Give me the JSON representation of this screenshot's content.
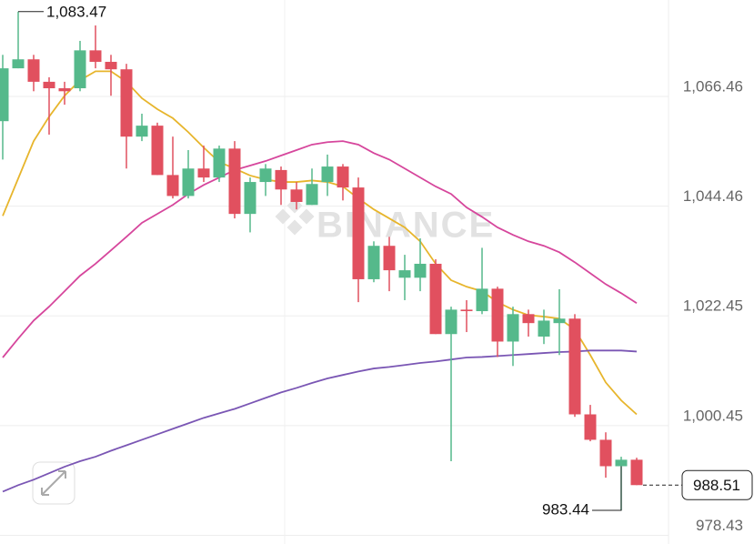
{
  "chart_data": {
    "type": "candlestick",
    "watermark": "BINANCE",
    "categories": [
      null,
      null,
      null,
      null,
      null,
      null,
      null,
      null,
      null,
      null,
      null,
      null,
      null,
      null,
      null,
      null,
      null,
      null,
      null,
      null,
      null,
      null,
      null,
      null,
      null,
      null,
      null,
      null,
      null,
      null,
      null,
      null,
      null,
      null,
      null,
      null,
      null,
      null,
      null,
      null,
      null,
      null
    ],
    "open": [
      1061.5,
      1072.1,
      1073.9,
      1069.4,
      1068.1,
      1068.1,
      1075.7,
      1073.4,
      1071.9,
      1058.4,
      1060.6,
      1050.7,
      1046.5,
      1052.0,
      1050.2,
      1056.0,
      1042.9,
      1049.3,
      1051.7,
      1047.8,
      1044.7,
      1049.3,
      1052.4,
      1048.2,
      1029.8,
      1036.5,
      1030.1,
      1030.1,
      1032.9,
      1018.8,
      1023.7,
      1023.4,
      1027.9,
      1017.3,
      1022.8,
      1018.3,
      1021.0,
      1021.9,
      1002.7,
      997.6,
      992.3,
      993.6
    ],
    "high": [
      1074.8,
      1083.47,
      1074.8,
      1070.3,
      1069.4,
      1077.6,
      1080.7,
      1074.8,
      1073.0,
      1063.0,
      1061.2,
      1058.4,
      1055.7,
      1056.6,
      1056.6,
      1057.5,
      1050.2,
      1052.9,
      1052.4,
      1049.3,
      1052.0,
      1054.8,
      1052.9,
      1050.2,
      1037.4,
      1038.3,
      1034.7,
      1038.0,
      1033.8,
      1024.3,
      1025.6,
      1036.1,
      1028.3,
      1024.3,
      1023.7,
      1023.7,
      1027.8,
      1022.8,
      1004.6,
      999.1,
      994.2,
      994.0
    ],
    "low": [
      1053.8,
      1072.1,
      1067.5,
      1058.8,
      1064.8,
      1067.5,
      1072.1,
      1066.6,
      1052.0,
      1057.5,
      1050.7,
      1046.0,
      1046.0,
      1049.3,
      1049.3,
      1042.0,
      1039.2,
      1046.5,
      1044.7,
      1043.8,
      1044.7,
      1046.5,
      1045.6,
      1025.2,
      1029.2,
      1027.4,
      1025.6,
      1027.4,
      1018.8,
      993.3,
      1019.2,
      1022.8,
      1014.2,
      1012.4,
      1018.3,
      1016.8,
      1014.6,
      1002.2,
      997.3,
      990.0,
      983.44,
      988.51
    ],
    "close": [
      1072.1,
      1073.9,
      1069.4,
      1068.1,
      1067.5,
      1075.7,
      1073.4,
      1071.9,
      1058.4,
      1060.6,
      1050.7,
      1046.5,
      1052.0,
      1050.2,
      1056.0,
      1042.9,
      1049.3,
      1052.0,
      1047.8,
      1045.3,
      1048.9,
      1052.4,
      1048.2,
      1029.8,
      1036.5,
      1031.6,
      1031.6,
      1032.9,
      1018.8,
      1023.7,
      1023.4,
      1027.9,
      1017.3,
      1022.8,
      1021.0,
      1021.5,
      1021.9,
      1002.7,
      997.6,
      992.3,
      993.6,
      988.51
    ],
    "up_color": "#55b98b",
    "down_color": "#e1505f",
    "series": [
      {
        "color": "#e7b52c",
        "values": [
          1042.5,
          1050.0,
          1057.5,
          1062.4,
          1066.6,
          1069.7,
          1071.5,
          1071.5,
          1069.4,
          1066.1,
          1063.9,
          1062.1,
          1059.3,
          1056.2,
          1053.3,
          1052.0,
          1050.6,
          1049.8,
          1049.3,
          1049.3,
          1049.6,
          1049.3,
          1048.4,
          1046.0,
          1043.8,
          1042.0,
          1040.2,
          1037.4,
          1032.9,
          1029.6,
          1028.3,
          1027.4,
          1025.2,
          1023.7,
          1022.6,
          1022.3,
          1021.9,
          1019.7,
          1014.6,
          1009.1,
          1005.5,
          1002.7
        ]
      },
      {
        "color": "#d6469c",
        "values": [
          1014.1,
          1017.9,
          1021.5,
          1024.3,
          1027.4,
          1030.5,
          1032.9,
          1035.6,
          1038.3,
          1041.1,
          1042.9,
          1044.7,
          1046.9,
          1048.7,
          1050.2,
          1051.7,
          1052.6,
          1053.5,
          1054.6,
          1055.7,
          1056.8,
          1057.3,
          1057.5,
          1056.8,
          1055.1,
          1053.8,
          1052.0,
          1050.2,
          1048.4,
          1046.9,
          1044.2,
          1042.3,
          1040.2,
          1038.7,
          1037.4,
          1036.5,
          1035.2,
          1033.2,
          1031.0,
          1028.8,
          1027.0,
          1025.0
        ]
      },
      {
        "color": "#7a56b4",
        "values": [
          987.2,
          988.5,
          989.6,
          990.9,
          992.2,
          993.3,
          994.2,
          995.4,
          996.5,
          997.6,
          998.7,
          999.8,
          1000.9,
          1002.0,
          1002.9,
          1003.8,
          1004.9,
          1006.0,
          1007.1,
          1008.0,
          1009.0,
          1009.9,
          1010.6,
          1011.3,
          1011.9,
          1012.2,
          1012.6,
          1013.0,
          1013.3,
          1013.7,
          1014.1,
          1014.2,
          1014.4,
          1014.6,
          1014.8,
          1015.0,
          1015.2,
          1015.3,
          1015.5,
          1015.5,
          1015.5,
          1015.3
        ]
      }
    ],
    "high_label": "1,083.47",
    "low_label": "983.44",
    "last_label": "988.51",
    "ylim": [
      976.7,
      1085.8
    ],
    "yticks": [
      {
        "value": 1066.46,
        "label": "1,066.46"
      },
      {
        "value": 1044.46,
        "label": "1,044.46"
      },
      {
        "value": 1022.45,
        "label": "1,022.45"
      },
      {
        "value": 1000.45,
        "label": "1,000.45"
      },
      978.43
    ],
    "grid": true
  }
}
